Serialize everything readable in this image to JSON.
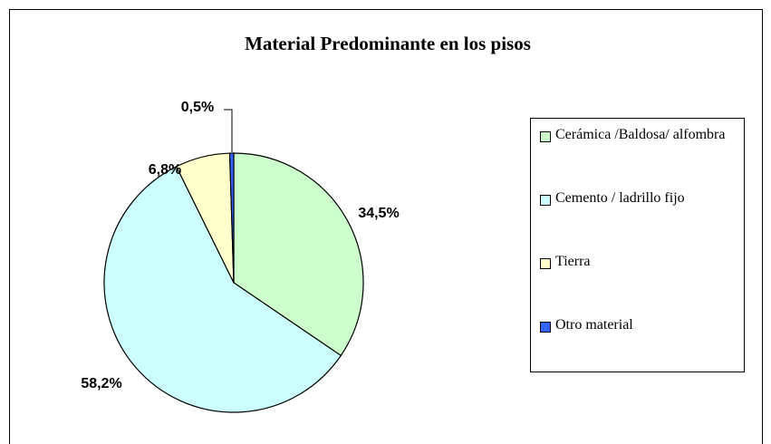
{
  "chart_data": {
    "type": "pie",
    "title": "Material Predominante en los pisos",
    "categories": [
      "Cerámica /Baldosa/ alfombra",
      "Cemento / ladrillo fijo",
      "Tierra",
      "Otro material"
    ],
    "values": [
      34.5,
      58.2,
      6.8,
      0.5
    ],
    "value_labels": [
      "34,5%",
      "58,2%",
      "6,8%",
      "0,5%"
    ],
    "colors": [
      "#ccffcc",
      "#ccffff",
      "#ffffcc",
      "#3366ff"
    ],
    "legend": "right"
  }
}
